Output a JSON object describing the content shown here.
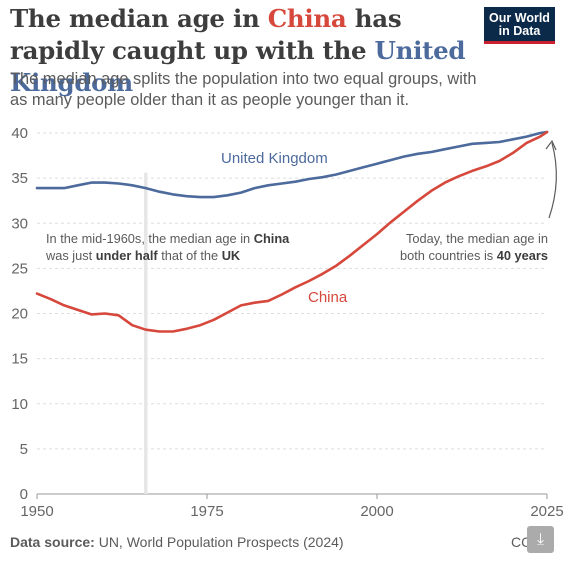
{
  "logo": {
    "line1": "Our World",
    "line2": "in Data"
  },
  "title": {
    "part1": "The median age in ",
    "china": "China",
    "part2": " has rapidly caught up with the ",
    "uk": "United Kingdom"
  },
  "subtitle": "The median age splits the population into two equal groups, with as many people older than it as people younger than it.",
  "annotations": {
    "left": {
      "line1_a": "In the mid-1960s, the median age in ",
      "line1_b": "China",
      "line2_a": "was just ",
      "line2_b": "under half",
      "line2_c": " that of the ",
      "line2_d": "UK"
    },
    "right": {
      "line1": "Today, the median age in",
      "line2_a": "both countries is ",
      "line2_b": "40 years"
    }
  },
  "footer": {
    "label": "Data source:",
    "text": " UN, World Population Prospects (2024)",
    "license": "CC"
  },
  "download_icon": "download-icon",
  "colors": {
    "china": "#d6483b",
    "uk": "#4c6a9c",
    "highlight": "#e6e6e6"
  },
  "chart_data": {
    "type": "line",
    "title": "The median age in China has rapidly caught up with the United Kingdom",
    "xlabel": "",
    "ylabel": "",
    "xlim": [
      1950,
      2025
    ],
    "ylim": [
      0,
      40
    ],
    "x_ticks": [
      1950,
      1975,
      2000,
      2025
    ],
    "y_ticks": [
      0,
      5,
      10,
      15,
      20,
      25,
      30,
      35,
      40
    ],
    "highlight_year": 1966,
    "grid": "horizontal dashed",
    "legend": "inline labels",
    "series": [
      {
        "name": "United Kingdom",
        "x": [
          1950,
          1952,
          1954,
          1956,
          1958,
          1960,
          1962,
          1964,
          1966,
          1968,
          1970,
          1972,
          1974,
          1976,
          1978,
          1980,
          1982,
          1984,
          1986,
          1988,
          1990,
          1992,
          1994,
          1996,
          1998,
          2000,
          2002,
          2004,
          2006,
          2008,
          2010,
          2012,
          2014,
          2016,
          2018,
          2020,
          2022,
          2024,
          2025
        ],
        "y": [
          33.9,
          33.9,
          33.9,
          34.2,
          34.5,
          34.5,
          34.4,
          34.2,
          33.9,
          33.5,
          33.2,
          33.0,
          32.9,
          32.9,
          33.1,
          33.4,
          33.9,
          34.2,
          34.4,
          34.6,
          34.9,
          35.1,
          35.4,
          35.8,
          36.2,
          36.6,
          37.0,
          37.4,
          37.7,
          37.9,
          38.2,
          38.5,
          38.8,
          38.9,
          39.0,
          39.3,
          39.6,
          40.0,
          40.1
        ]
      },
      {
        "name": "China",
        "x": [
          1950,
          1952,
          1954,
          1956,
          1958,
          1960,
          1962,
          1964,
          1966,
          1968,
          1970,
          1972,
          1974,
          1976,
          1978,
          1980,
          1982,
          1984,
          1986,
          1988,
          1990,
          1992,
          1994,
          1996,
          1998,
          2000,
          2002,
          2004,
          2006,
          2008,
          2010,
          2012,
          2014,
          2016,
          2018,
          2020,
          2022,
          2024,
          2025
        ],
        "y": [
          22.2,
          21.6,
          20.9,
          20.4,
          19.9,
          20.0,
          19.8,
          18.7,
          18.2,
          18.0,
          18.0,
          18.3,
          18.7,
          19.3,
          20.1,
          20.9,
          21.2,
          21.4,
          22.1,
          22.9,
          23.6,
          24.4,
          25.3,
          26.4,
          27.6,
          28.8,
          30.1,
          31.3,
          32.5,
          33.6,
          34.5,
          35.2,
          35.8,
          36.3,
          36.9,
          37.8,
          38.9,
          39.6,
          40.1
        ]
      }
    ]
  }
}
